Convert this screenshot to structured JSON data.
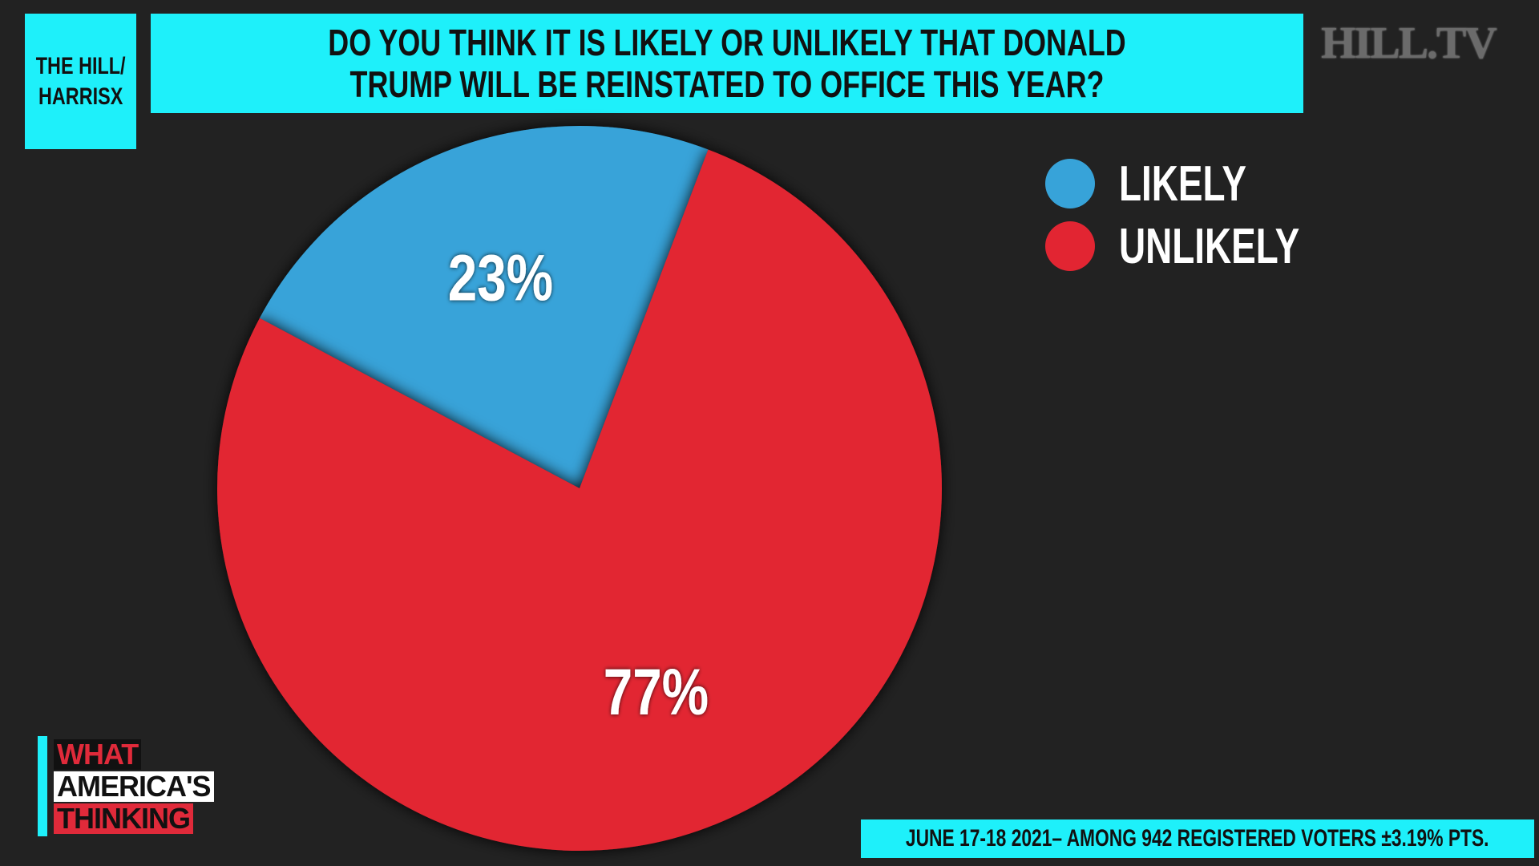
{
  "source": {
    "line1": "THE HILL/",
    "line2": "HARRISX"
  },
  "title": "DO YOU THINK IT IS LIKELY OR UNLIKELY THAT DONALD TRUMP WILL BE REINSTATED TO OFFICE THIS YEAR?",
  "network_logo": "HILL.TV",
  "brand": {
    "line1": "WHAT",
    "line2": "AMERICA'S",
    "line3": "THINKING"
  },
  "footnote": "JUNE 17-18 2021– AMONG 942 REGISTERED VOTERS ±3.19% PTS.",
  "colors": {
    "background": "#222222",
    "accent": "#1ef0fa",
    "likely": "#37a3d9",
    "unlikely": "#e22532",
    "text": "#ffffff"
  },
  "chart_data": {
    "type": "pie",
    "title": "DO YOU THINK IT IS LIKELY OR UNLIKELY THAT DONALD TRUMP WILL BE REINSTATED TO OFFICE THIS YEAR?",
    "slices": [
      {
        "label": "LIKELY",
        "value": 23,
        "value_label": "23%",
        "color": "#37a3d9"
      },
      {
        "label": "UNLIKELY",
        "value": 77,
        "value_label": "77%",
        "color": "#e22532"
      }
    ],
    "legend_position": "top-right"
  }
}
